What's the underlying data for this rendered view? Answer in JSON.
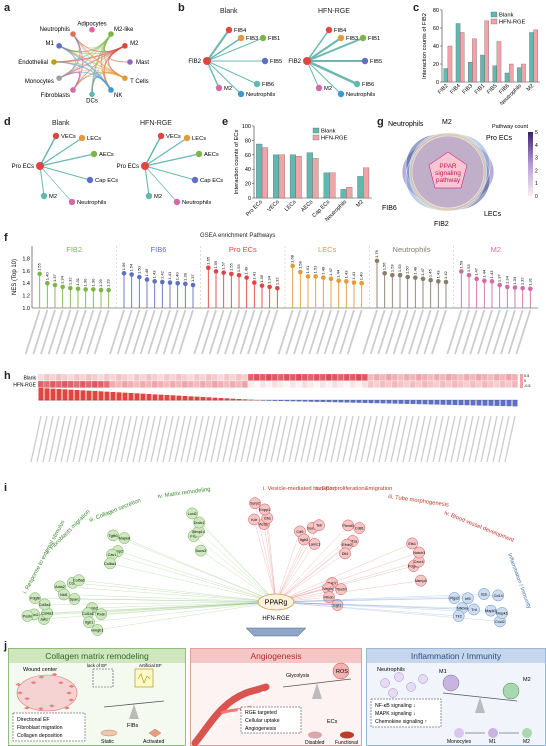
{
  "panels": {
    "a": "a",
    "b": "b",
    "c": "c",
    "d": "d",
    "e": "e",
    "f": "f",
    "g": "g",
    "h": "h",
    "i": "i",
    "j": "j"
  },
  "net_a": {
    "nodes": [
      "Adipocytes",
      "M2-like",
      "M2",
      "Mast",
      "T Cells",
      "NK",
      "DCs",
      "Fibroblasts",
      "Monocytes",
      "Endothelial",
      "M1",
      "Neutrophils"
    ]
  },
  "net_b": {
    "blank_title": "Blank",
    "hfn_title": "HFN-RGE",
    "center": "FIB2",
    "targets": [
      "FIB4",
      "FIB3",
      "FIB1",
      "FIB5",
      "FIB6",
      "M2",
      "Neutrophils"
    ]
  },
  "net_d": {
    "blank_title": "Blank",
    "hfn_title": "HFN-RGE",
    "center": "Pro ECs",
    "targets": [
      "VECs",
      "LECs",
      "AECs",
      "Cap ECs",
      "M2",
      "Neutrophils"
    ]
  },
  "chart_c": {
    "type": "bar",
    "ylabel": "Interaction counts of FIB2",
    "categories": [
      "FIB2",
      "FIB4",
      "FIB3",
      "FIB1",
      "FIB5",
      "FIB6",
      "Neutrophils",
      "M2"
    ],
    "series": [
      {
        "name": "Blank",
        "values": [
          15,
          65,
          22,
          30,
          18,
          10,
          16,
          55
        ],
        "color": "#5fb9b0"
      },
      {
        "name": "HFN-RGE",
        "values": [
          40,
          55,
          48,
          68,
          45,
          20,
          20,
          58
        ],
        "color": "#f2a3a8"
      }
    ],
    "ylim": [
      0,
      80
    ],
    "yticks": [
      0,
      20,
      40,
      60,
      80
    ]
  },
  "chart_e": {
    "type": "bar",
    "ylabel": "Interaction counts of ECs",
    "categories": [
      "Pro ECs",
      "VECs",
      "LECs",
      "AECs",
      "Cap ECs",
      "Neutrophils",
      "M2"
    ],
    "series": [
      {
        "name": "Blank",
        "values": [
          75,
          60,
          60,
          63,
          35,
          12,
          30
        ],
        "color": "#5fb9b0"
      },
      {
        "name": "HFN-RGE",
        "values": [
          70,
          60,
          58,
          55,
          35,
          15,
          42
        ],
        "color": "#f2a3a8"
      }
    ],
    "ylim": [
      0,
      100
    ],
    "yticks": [
      0,
      20,
      40,
      60,
      80,
      100
    ]
  },
  "venn_g": {
    "labels": [
      "Neutrophils",
      "M2",
      "Pro ECs",
      "FIB6",
      "FIB2",
      "LECs"
    ],
    "center_text": [
      "PPAR",
      "signaling",
      "pathway"
    ],
    "legend_title": "Pathway count",
    "legend_ticks": [
      "5",
      "4",
      "3",
      "2",
      "1",
      "0"
    ]
  },
  "chart_f": {
    "type": "scatter",
    "title": "GSEA enrichment Pathways",
    "ylabel": "NES (Top 10)",
    "ylim": [
      1.0,
      2.0
    ],
    "yticks": [
      "1.0",
      "1.2",
      "1.4",
      "1.6",
      "1.8"
    ],
    "groups": [
      {
        "name": "FIB2",
        "color": "#7ab648",
        "values": [
          1.55,
          1.4,
          1.37,
          1.34,
          1.32,
          1.31,
          1.3,
          1.3,
          1.29,
          1.29
        ]
      },
      {
        "name": "FIB6",
        "color": "#5e6fc4",
        "values": [
          1.56,
          1.54,
          1.5,
          1.46,
          1.43,
          1.42,
          1.41,
          1.4,
          1.39,
          1.37
        ]
      },
      {
        "name": "Pro ECs",
        "color": "#e0453f",
        "values": [
          1.65,
          1.59,
          1.57,
          1.55,
          1.53,
          1.49,
          1.41,
          1.36,
          1.34,
          1.32
        ]
      },
      {
        "name": "LECs",
        "color": "#e39a3b",
        "values": [
          1.68,
          1.58,
          1.51,
          1.51,
          1.49,
          1.47,
          1.44,
          1.43,
          1.41,
          1.4
        ]
      },
      {
        "name": "Neutrophils",
        "color": "#8b7d6b",
        "values": [
          1.76,
          1.56,
          1.53,
          1.53,
          1.5,
          1.49,
          1.47,
          1.45,
          1.43,
          1.42
        ]
      },
      {
        "name": "M2",
        "color": "#d46aa6",
        "values": [
          1.59,
          1.53,
          1.47,
          1.44,
          1.43,
          1.37,
          1.34,
          1.33,
          1.32,
          1.31
        ]
      }
    ]
  },
  "heat_h": {
    "rows": [
      "Blank",
      "HFN-RGE"
    ],
    "scale_ticks": [
      "0.5",
      "0",
      "-0.5"
    ]
  },
  "network_i": {
    "hub": "PPARg",
    "hub_sub": "HFN-RGE",
    "modules_left": [
      "i. Response to external stimulus",
      "ii. Fibroblasts migration",
      "iii. Collagen secretion",
      "iv. Matrix remodeling"
    ],
    "modules_right": [
      "i. Vesicle-mediated transport",
      "ii. ECs proliferation&migration",
      "iii. Tube morphogenesis",
      "iv. Blood vessel development"
    ],
    "modules_far_right": [
      "Inflammation / Immunity"
    ],
    "genes_green": [
      "Jak2",
      "Acta2",
      "Mapk8",
      "Socs3",
      "Lamb2",
      "Col4a1",
      "Nid1",
      "Tgfb1",
      "Fn1",
      "Col1a1",
      "Col3a1",
      "Sparc",
      "Mmp2",
      "Mmp14",
      "Itgb1",
      "Pdgfb",
      "Ccl2",
      "Cav1",
      "Dock1",
      "Hmgb1",
      "Ccn2",
      "Col5a1",
      "Col6a1",
      "Loxl2",
      "Pxdn",
      "Postn"
    ],
    "genes_red": [
      "Acta1",
      "Cd9",
      "Cd81",
      "Vamp8",
      "Rab7",
      "Clta",
      "Itgb3",
      "Plxnd1",
      "Pdgfrb",
      "Vegfa",
      "Enpp1",
      "Lamc1",
      "Hif1a",
      "Cxcr4",
      "Rhob",
      "Spry2",
      "Sox17",
      "Efnb2",
      "Notch1",
      "Egr1",
      "Kdr",
      "Tek",
      "Dll4",
      "Ets1",
      "Tbx20"
    ],
    "genes_blue": [
      "Il1b",
      "Cxcl2",
      "Ptgs2",
      "Mapk3",
      "Mapk1",
      "Nfkbia",
      "Tnf",
      "Cd14",
      "Tlr2",
      "Irf5"
    ]
  },
  "panel_j": {
    "col1": {
      "title": "Collagen matrix remodeling",
      "wound_center": "Wound center",
      "lack_ef": "lack of EF",
      "artificial_ef": "Artificial EF",
      "bullets": [
        "Directional EF",
        "Fibroblast migration",
        "Collagen deposition"
      ],
      "fibs": "FIBs",
      "static": "Static",
      "activated": "Activated"
    },
    "col2": {
      "title": "Angiogenesis",
      "glycolysis": "Glycolysis",
      "ros": "ROS",
      "bullets": [
        "RGE targeted",
        "Cellular uptake",
        "Angiogenesis"
      ],
      "ecs": "ECs",
      "disabled": "Disabled",
      "functional": "Functional"
    },
    "col3": {
      "title": "Inflammation / Immunity",
      "neutrophils": "Neutrophils",
      "m1": "M1",
      "m2": "M2",
      "bullets": [
        "NF-κB signaling ↓",
        "MAPK signaling ↓",
        "Chemokine signaling ↑"
      ],
      "monocytes": "Monocytes",
      "m1b": "M1",
      "m2b": "M2"
    }
  }
}
